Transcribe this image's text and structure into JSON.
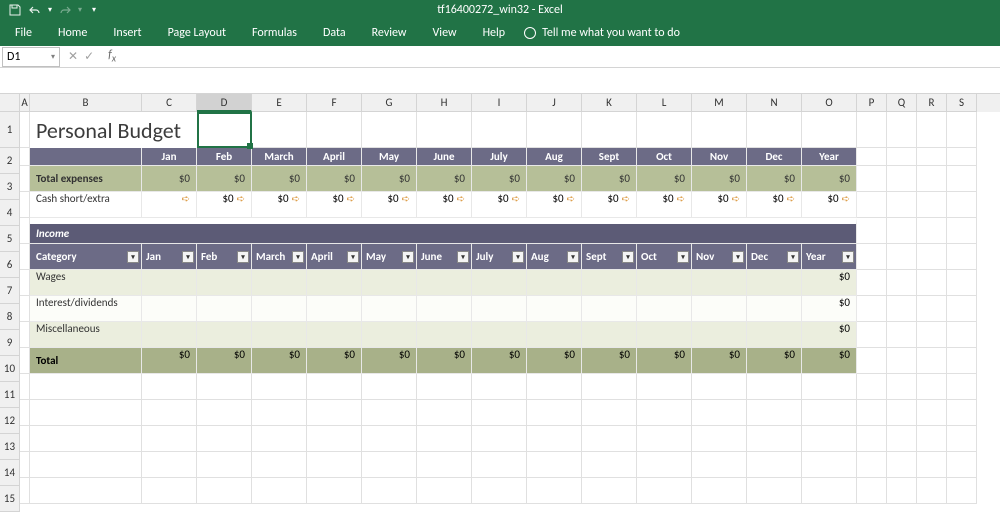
{
  "titlebar": {
    "doc": "tf16400272_win32",
    "app": "Excel"
  },
  "qat": {
    "save": "save",
    "undo": "undo",
    "redo": "redo"
  },
  "ribbon": {
    "tabs": [
      "File",
      "Home",
      "Insert",
      "Page Layout",
      "Formulas",
      "Data",
      "Review",
      "View",
      "Help"
    ],
    "tellme": "Tell me what you want to do"
  },
  "namebox": "D1",
  "columns": [
    "A",
    "B",
    "C",
    "D",
    "E",
    "F",
    "G",
    "H",
    "I",
    "J",
    "K",
    "L",
    "M",
    "N",
    "O",
    "P",
    "Q",
    "R",
    "S"
  ],
  "rownums": [
    "1",
    "2",
    "3",
    "4",
    "5",
    "6",
    "7",
    "8",
    "9",
    "10",
    "11",
    "12",
    "13",
    "14",
    "15"
  ],
  "budget": {
    "title": "Personal Budget",
    "months": [
      "Jan",
      "Feb",
      "March",
      "April",
      "May",
      "June",
      "July",
      "Aug",
      "Sept",
      "Oct",
      "Nov",
      "Dec",
      "Year"
    ],
    "expenses_label": "Total expenses",
    "expenses_values": [
      "$0",
      "$0",
      "$0",
      "$0",
      "$0",
      "$0",
      "$0",
      "$0",
      "$0",
      "$0",
      "$0",
      "$0",
      "$0"
    ],
    "cash_label": "Cash short/extra",
    "cash_values": [
      "",
      "$0",
      "$0",
      "$0",
      "$0",
      "$0",
      "$0",
      "$0",
      "$0",
      "$0",
      "$0",
      "$0",
      "$0"
    ],
    "income_header": "Income",
    "category_label": "Category",
    "income_rows": [
      {
        "label": "Wages",
        "year": "$0"
      },
      {
        "label": "Interest/dividends",
        "year": "$0"
      },
      {
        "label": "Miscellaneous",
        "year": "$0"
      }
    ],
    "total_label": "Total",
    "total_values": [
      "$0",
      "$0",
      "$0",
      "$0",
      "$0",
      "$0",
      "$0",
      "$0",
      "$0",
      "$0",
      "$0",
      "$0",
      "$0"
    ]
  },
  "colors": {
    "brand": "#217346",
    "purple": "#6c6b86",
    "purple_dark": "#5c5b76",
    "olive": "#b6bf98",
    "olive_dark": "#a8b189",
    "pale": "#ebeede"
  },
  "active_cell": "D1"
}
